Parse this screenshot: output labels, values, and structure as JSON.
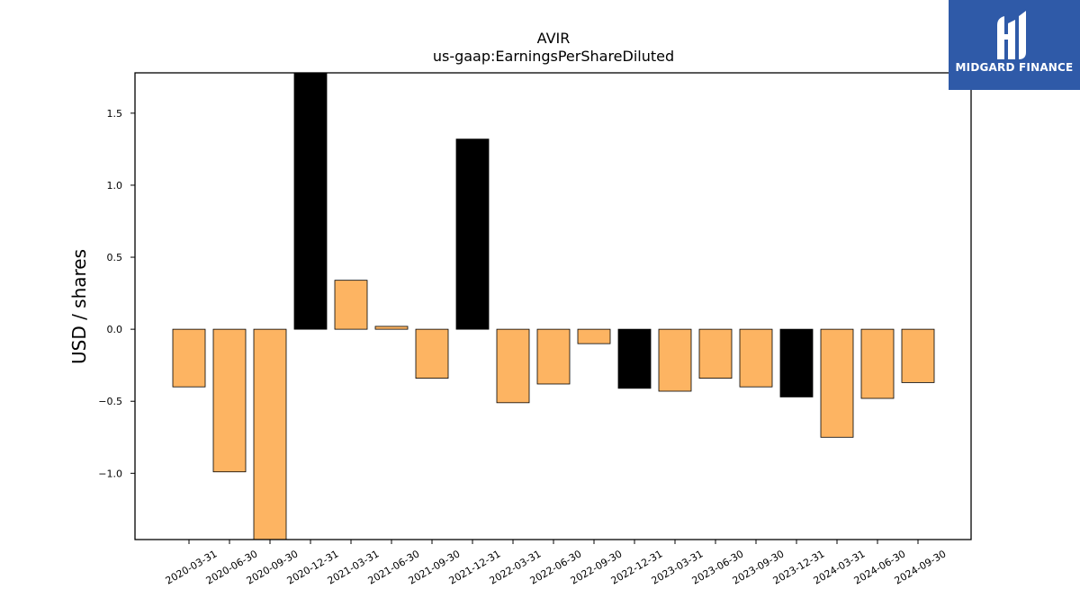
{
  "branding": {
    "logo_text": "MIDGARD FINANCE",
    "logo_bg": "#2f5aa8"
  },
  "chart_data": {
    "type": "bar",
    "title": "AVIR",
    "subtitle": "us-gaap:EarningsPerShareDiluted",
    "xlabel": "",
    "ylabel": "USD / shares",
    "ylim": [
      -1.46,
      1.78
    ],
    "yticks": [
      -1.0,
      -0.5,
      0.0,
      0.5,
      1.0,
      1.5
    ],
    "ytick_labels": [
      "−1.0",
      "−0.5",
      "0.0",
      "0.5",
      "1.0",
      "1.5"
    ],
    "grid": false,
    "colors": {
      "default": "#fdb462",
      "highlight": "#000000"
    },
    "categories": [
      "2020-03-31",
      "2020-06-30",
      "2020-09-30",
      "2020-12-31",
      "2021-03-31",
      "2021-06-30",
      "2021-09-30",
      "2021-12-31",
      "2022-03-31",
      "2022-06-30",
      "2022-09-30",
      "2022-12-31",
      "2023-03-31",
      "2023-06-30",
      "2023-09-30",
      "2023-12-31",
      "2024-03-31",
      "2024-06-30",
      "2024-09-30"
    ],
    "values": [
      -0.4,
      -0.99,
      -1.46,
      1.78,
      0.34,
      0.02,
      -0.34,
      1.32,
      -0.51,
      -0.38,
      -0.1,
      -0.41,
      -0.43,
      -0.34,
      -0.4,
      -0.47,
      -0.75,
      -0.48,
      -0.37
    ],
    "highlight": [
      false,
      false,
      false,
      true,
      false,
      false,
      false,
      true,
      false,
      false,
      false,
      true,
      false,
      false,
      false,
      true,
      false,
      false,
      false
    ]
  }
}
